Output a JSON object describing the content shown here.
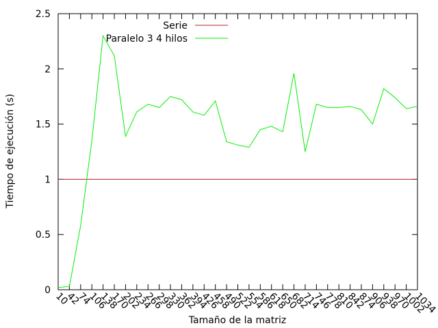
{
  "chart_data": {
    "type": "line",
    "title": "",
    "xlabel": "Tamaño de la matriz",
    "ylabel": "Tiempo de ejecución (s)",
    "ylim": [
      0,
      2.5
    ],
    "yticks": [
      "0",
      "0.5",
      "1",
      "1.5",
      "2",
      "2.5"
    ],
    "grid": false,
    "legend_position": "top-center",
    "categories": [
      "10",
      "42",
      "74",
      "106",
      "138",
      "170",
      "202",
      "234",
      "266",
      "298",
      "330",
      "362",
      "394",
      "426",
      "458",
      "490",
      "522",
      "554",
      "586",
      "618",
      "650",
      "682",
      "714",
      "746",
      "778",
      "810",
      "842",
      "874",
      "906",
      "938",
      "970",
      "1002",
      "1034"
    ],
    "series": [
      {
        "name": "Serie",
        "color": "#b22222",
        "values": [
          1,
          1,
          1,
          1,
          1,
          1,
          1,
          1,
          1,
          1,
          1,
          1,
          1,
          1,
          1,
          1,
          1,
          1,
          1,
          1,
          1,
          1,
          1,
          1,
          1,
          1,
          1,
          1,
          1,
          1,
          1,
          1,
          1
        ]
      },
      {
        "name": "Paralelo 3 4 hilos",
        "color": "#00ee00",
        "values": [
          0.02,
          0.03,
          0.58,
          1.35,
          2.3,
          2.12,
          1.39,
          1.61,
          1.68,
          1.65,
          1.75,
          1.72,
          1.61,
          1.58,
          1.71,
          1.34,
          1.31,
          1.29,
          1.45,
          1.48,
          1.43,
          1.96,
          1.25,
          1.68,
          1.65,
          1.65,
          1.66,
          1.63,
          1.5,
          1.82,
          1.74,
          1.64,
          1.66
        ]
      }
    ]
  }
}
